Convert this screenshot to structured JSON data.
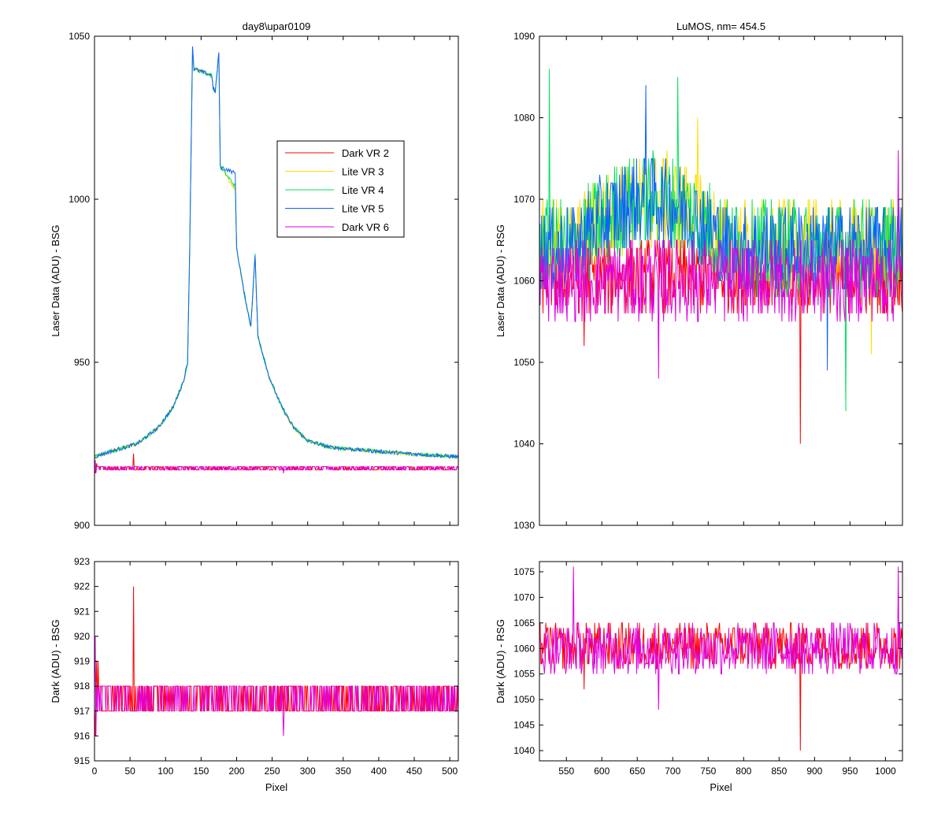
{
  "chart_data": [
    {
      "id": "laser-bsg",
      "type": "line",
      "title": "day8\\upar0109",
      "xlabel": "",
      "ylabel": "Laser Data (ADU) - BSG",
      "xlim": [
        0,
        512
      ],
      "ylim": [
        900,
        1050
      ],
      "yticks": [
        900,
        950,
        1000,
        1050
      ],
      "xticks": [
        0,
        50,
        100,
        150,
        200,
        250,
        300,
        350,
        400,
        450,
        500
      ],
      "show_xtick_labels": false,
      "grid": false,
      "legend": {
        "placement": "upper-middle",
        "entries": [
          "Dark VR 2",
          "Lite VR 3",
          "Lite VR 4",
          "Lite VR 5",
          "Dark VR 6"
        ]
      },
      "series": [
        {
          "name": "Dark VR 2",
          "color": "#ff0000",
          "style": "dark-alternating",
          "levels": [
            917,
            918
          ],
          "spikes": [
            [
              1,
              916
            ],
            [
              3,
              919
            ],
            [
              55,
              922
            ]
          ]
        },
        {
          "name": "Lite VR 3",
          "color": "#ffdd00",
          "style": "peak",
          "profile": [
            [
              0,
              921
            ],
            [
              20,
              922.5
            ],
            [
              60,
              925
            ],
            [
              90,
              930
            ],
            [
              110,
              936
            ],
            [
              125,
              944
            ],
            [
              131,
              950
            ],
            [
              134,
              985
            ],
            [
              138,
              1045
            ],
            [
              140,
              1040
            ],
            [
              165,
              1038
            ],
            [
              167,
              1034
            ],
            [
              170,
              1033
            ],
            [
              175,
              1045
            ],
            [
              177,
              1010
            ],
            [
              198,
              1003
            ],
            [
              200,
              985
            ],
            [
              210,
              972
            ],
            [
              220,
              961
            ],
            [
              226,
              982
            ],
            [
              230,
              958
            ],
            [
              245,
              946
            ],
            [
              262,
              937
            ],
            [
              280,
              930
            ],
            [
              300,
              926
            ],
            [
              330,
              924
            ],
            [
              380,
              923
            ],
            [
              440,
              922
            ],
            [
              512,
              921
            ]
          ]
        },
        {
          "name": "Lite VR 4",
          "color": "#00e05a",
          "style": "peak",
          "profile": [
            [
              0,
              921
            ],
            [
              20,
              922.5
            ],
            [
              60,
              925
            ],
            [
              90,
              930
            ],
            [
              110,
              936
            ],
            [
              125,
              944
            ],
            [
              131,
              950
            ],
            [
              134,
              985
            ],
            [
              138,
              1046
            ],
            [
              140,
              1040
            ],
            [
              165,
              1038
            ],
            [
              167,
              1034
            ],
            [
              170,
              1033
            ],
            [
              175,
              1045
            ],
            [
              177,
              1010
            ],
            [
              198,
              1004
            ],
            [
              200,
              985
            ],
            [
              210,
              972
            ],
            [
              220,
              961
            ],
            [
              226,
              983
            ],
            [
              230,
              958
            ],
            [
              245,
              946
            ],
            [
              262,
              937
            ],
            [
              280,
              930
            ],
            [
              300,
              926
            ],
            [
              330,
              924
            ],
            [
              380,
              923
            ],
            [
              440,
              922
            ],
            [
              512,
              921
            ]
          ]
        },
        {
          "name": "Lite VR 5",
          "color": "#1060ff",
          "style": "peak",
          "profile": [
            [
              0,
              921
            ],
            [
              20,
              922.5
            ],
            [
              60,
              925
            ],
            [
              90,
              930
            ],
            [
              110,
              936
            ],
            [
              125,
              944
            ],
            [
              131,
              950
            ],
            [
              134,
              985
            ],
            [
              138,
              1047
            ],
            [
              140,
              1040
            ],
            [
              165,
              1038
            ],
            [
              167,
              1034
            ],
            [
              170,
              1033
            ],
            [
              175,
              1045
            ],
            [
              177,
              1010
            ],
            [
              198,
              1008
            ],
            [
              200,
              985
            ],
            [
              210,
              972
            ],
            [
              220,
              961
            ],
            [
              226,
              983
            ],
            [
              230,
              958
            ],
            [
              245,
              946
            ],
            [
              262,
              937
            ],
            [
              280,
              930
            ],
            [
              300,
              926
            ],
            [
              330,
              924
            ],
            [
              380,
              923
            ],
            [
              440,
              922
            ],
            [
              512,
              921
            ]
          ]
        },
        {
          "name": "Dark VR 6",
          "color": "#e000e0",
          "style": "dark-alternating",
          "levels": [
            917,
            918
          ],
          "spikes": [
            [
              1,
              920
            ],
            [
              2,
              916
            ],
            [
              266,
              916
            ]
          ]
        }
      ]
    },
    {
      "id": "laser-rsg",
      "type": "line",
      "title": "LuMOS, nm= 454.5",
      "xlabel": "",
      "ylabel": "Laser Data (ADU) - RSG",
      "xlim": [
        512,
        1024
      ],
      "ylim": [
        1030,
        1090
      ],
      "yticks": [
        1030,
        1040,
        1050,
        1060,
        1070,
        1080,
        1090
      ],
      "xticks": [
        550,
        600,
        650,
        700,
        750,
        800,
        850,
        900,
        950,
        1000
      ],
      "show_xtick_labels": false,
      "grid": false,
      "series": [
        {
          "name": "Dark VR 2",
          "color": "#ff0000",
          "style": "noise",
          "mean": 1060.5,
          "amplitude": 4.5,
          "spikes": [
            [
              880,
              1040
            ],
            [
              575,
              1052
            ]
          ]
        },
        {
          "name": "Lite VR 3",
          "color": "#ffdd00",
          "style": "noise",
          "mean": 1064,
          "amplitude": 6,
          "hump": [
            [
              620,
              720
            ],
            6
          ],
          "spikes": [
            [
              735,
              1080
            ],
            [
              980,
              1051
            ]
          ]
        },
        {
          "name": "Lite VR 4",
          "color": "#00e05a",
          "style": "noise",
          "mean": 1064,
          "amplitude": 6,
          "hump": [
            [
              620,
              720
            ],
            6
          ],
          "spikes": [
            [
              526,
              1086
            ],
            [
              707,
              1085
            ],
            [
              944,
              1044
            ]
          ]
        },
        {
          "name": "Lite VR 5",
          "color": "#1060ff",
          "style": "noise",
          "mean": 1064,
          "amplitude": 5.5,
          "hump": [
            [
              620,
              720
            ],
            6
          ],
          "spikes": [
            [
              662,
              1084
            ],
            [
              918,
              1049
            ]
          ]
        },
        {
          "name": "Dark VR 6",
          "color": "#e000e0",
          "style": "noise",
          "mean": 1060,
          "amplitude": 5,
          "spikes": [
            [
              1018,
              1076
            ],
            [
              680,
              1048
            ]
          ]
        }
      ]
    },
    {
      "id": "dark-bsg",
      "type": "line",
      "title": "",
      "xlabel": "Pixel",
      "ylabel": "Dark (ADU) - BSG",
      "xlim": [
        0,
        512
      ],
      "ylim": [
        915,
        923
      ],
      "yticks": [
        915,
        916,
        917,
        918,
        919,
        920,
        921,
        922,
        923
      ],
      "xticks": [
        0,
        50,
        100,
        150,
        200,
        250,
        300,
        350,
        400,
        450,
        500
      ],
      "show_xtick_labels": true,
      "grid": false,
      "series": [
        {
          "name": "Dark VR 2",
          "color": "#ff0000",
          "style": "dark-alternating",
          "levels": [
            917,
            918
          ],
          "spikes": [
            [
              1,
              916
            ],
            [
              3,
              919
            ],
            [
              5,
              919
            ],
            [
              55,
              922
            ]
          ]
        },
        {
          "name": "Dark VR 6",
          "color": "#e000e0",
          "style": "dark-alternating",
          "levels": [
            917,
            918
          ],
          "spikes": [
            [
              1,
              920
            ],
            [
              2,
              916
            ],
            [
              266,
              916
            ]
          ]
        }
      ]
    },
    {
      "id": "dark-rsg",
      "type": "line",
      "title": "",
      "xlabel": "Pixel",
      "ylabel": "Dark (ADU) - RSG",
      "xlim": [
        512,
        1024
      ],
      "ylim": [
        1038,
        1077
      ],
      "yticks": [
        1040,
        1045,
        1050,
        1055,
        1060,
        1065,
        1070,
        1075
      ],
      "xticks": [
        550,
        600,
        650,
        700,
        750,
        800,
        850,
        900,
        950,
        1000
      ],
      "show_xtick_labels": true,
      "grid": false,
      "series": [
        {
          "name": "Dark VR 2",
          "color": "#ff0000",
          "style": "noise",
          "mean": 1060.5,
          "amplitude": 4.5,
          "spikes": [
            [
              880,
              1040
            ],
            [
              575,
              1052
            ]
          ]
        },
        {
          "name": "Dark VR 6",
          "color": "#e000e0",
          "style": "noise",
          "mean": 1060,
          "amplitude": 5,
          "spikes": [
            [
              560,
              1076
            ],
            [
              1018,
              1076
            ],
            [
              680,
              1048
            ]
          ]
        }
      ]
    }
  ]
}
